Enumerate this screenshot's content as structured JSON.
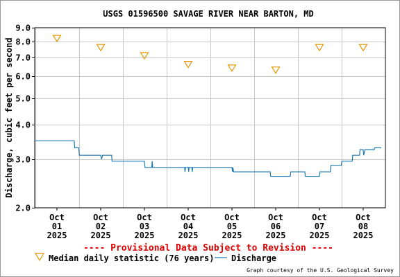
{
  "chart_data": {
    "type": "line",
    "title": "USGS 01596500 SAVAGE RIVER NEAR BARTON, MD",
    "ylabel": "Discharge, cubic feet per second",
    "y_scale": "log",
    "ylim": [
      2.0,
      9.0
    ],
    "y_ticks": [
      "2.0",
      "3.0",
      "4.0",
      "5.0",
      "6.0",
      "7.0",
      "8.0",
      "9.0"
    ],
    "x_ticks": [
      {
        "month": "Oct",
        "day": "01",
        "year": "2025"
      },
      {
        "month": "Oct",
        "day": "02",
        "year": "2025"
      },
      {
        "month": "Oct",
        "day": "03",
        "year": "2025"
      },
      {
        "month": "Oct",
        "day": "04",
        "year": "2025"
      },
      {
        "month": "Oct",
        "day": "05",
        "year": "2025"
      },
      {
        "month": "Oct",
        "day": "06",
        "year": "2025"
      },
      {
        "month": "Oct",
        "day": "07",
        "year": "2025"
      },
      {
        "month": "Oct",
        "day": "08",
        "year": "2025"
      }
    ],
    "grid": true,
    "legend_position": "bottom",
    "provisional_note": "---- Provisional Data Subject to Revision ----",
    "credit": "Graph courtesy of the U.S. Geological Survey",
    "series": [
      {
        "name": "Median daily statistic (76 years)",
        "type": "scatter",
        "marker": "triangle",
        "color": "#e69500",
        "points": [
          {
            "date": "2025-10-01",
            "value": 8.2
          },
          {
            "date": "2025-10-02",
            "value": 7.6
          },
          {
            "date": "2025-10-03",
            "value": 7.1
          },
          {
            "date": "2025-10-04",
            "value": 6.6
          },
          {
            "date": "2025-10-05",
            "value": 6.4
          },
          {
            "date": "2025-10-06",
            "value": 6.3
          },
          {
            "date": "2025-10-07",
            "value": 7.6
          },
          {
            "date": "2025-10-08",
            "value": 7.6
          }
        ]
      },
      {
        "name": "Discharge",
        "type": "line",
        "color": "#1f7ab0",
        "points": [
          {
            "date": "2025-09-30 12:00",
            "value": 3.5
          },
          {
            "date": "2025-10-01 09:30",
            "value": 3.5
          },
          {
            "date": "2025-10-01 09:45",
            "value": 3.3
          },
          {
            "date": "2025-10-01 12:00",
            "value": 3.3
          },
          {
            "date": "2025-10-01 12:15",
            "value": 3.1
          },
          {
            "date": "2025-10-02 00:00",
            "value": 3.1
          },
          {
            "date": "2025-10-02 00:30",
            "value": 3.0
          },
          {
            "date": "2025-10-02 01:00",
            "value": 3.1
          },
          {
            "date": "2025-10-02 06:00",
            "value": 3.1
          },
          {
            "date": "2025-10-02 06:15",
            "value": 2.95
          },
          {
            "date": "2025-10-03 00:00",
            "value": 2.95
          },
          {
            "date": "2025-10-03 00:15",
            "value": 2.8
          },
          {
            "date": "2025-10-03 04:00",
            "value": 2.8
          },
          {
            "date": "2025-10-03 04:15",
            "value": 2.95
          },
          {
            "date": "2025-10-03 04:30",
            "value": 2.8
          },
          {
            "date": "2025-10-03 22:00",
            "value": 2.8
          },
          {
            "date": "2025-10-03 22:15",
            "value": 2.7
          },
          {
            "date": "2025-10-03 22:30",
            "value": 2.8
          },
          {
            "date": "2025-10-04 00:00",
            "value": 2.8
          },
          {
            "date": "2025-10-04 00:15",
            "value": 2.7
          },
          {
            "date": "2025-10-04 00:30",
            "value": 2.8
          },
          {
            "date": "2025-10-04 02:00",
            "value": 2.8
          },
          {
            "date": "2025-10-04 02:15",
            "value": 2.7
          },
          {
            "date": "2025-10-04 02:30",
            "value": 2.8
          },
          {
            "date": "2025-10-05 00:00",
            "value": 2.8
          },
          {
            "date": "2025-10-05 00:15",
            "value": 2.7
          },
          {
            "date": "2025-10-05 00:30",
            "value": 2.8
          },
          {
            "date": "2025-10-05 01:00",
            "value": 2.7
          },
          {
            "date": "2025-10-05 21:00",
            "value": 2.7
          },
          {
            "date": "2025-10-05 21:15",
            "value": 2.6
          },
          {
            "date": "2025-10-06 08:00",
            "value": 2.6
          },
          {
            "date": "2025-10-06 08:15",
            "value": 2.7
          },
          {
            "date": "2025-10-06 16:00",
            "value": 2.7
          },
          {
            "date": "2025-10-06 16:15",
            "value": 2.6
          },
          {
            "date": "2025-10-07 00:00",
            "value": 2.6
          },
          {
            "date": "2025-10-07 00:15",
            "value": 2.7
          },
          {
            "date": "2025-10-07 06:00",
            "value": 2.7
          },
          {
            "date": "2025-10-07 06:15",
            "value": 2.85
          },
          {
            "date": "2025-10-07 12:00",
            "value": 2.85
          },
          {
            "date": "2025-10-07 12:15",
            "value": 2.95
          },
          {
            "date": "2025-10-07 18:00",
            "value": 2.95
          },
          {
            "date": "2025-10-07 18:15",
            "value": 3.1
          },
          {
            "date": "2025-10-07 22:00",
            "value": 3.1
          },
          {
            "date": "2025-10-07 22:15",
            "value": 3.25
          },
          {
            "date": "2025-10-08 00:00",
            "value": 3.25
          },
          {
            "date": "2025-10-08 00:15",
            "value": 3.1
          },
          {
            "date": "2025-10-08 01:00",
            "value": 3.25
          },
          {
            "date": "2025-10-08 06:00",
            "value": 3.25
          },
          {
            "date": "2025-10-08 06:15",
            "value": 3.3
          },
          {
            "date": "2025-10-08 12:00",
            "value": 3.3
          }
        ]
      }
    ]
  }
}
